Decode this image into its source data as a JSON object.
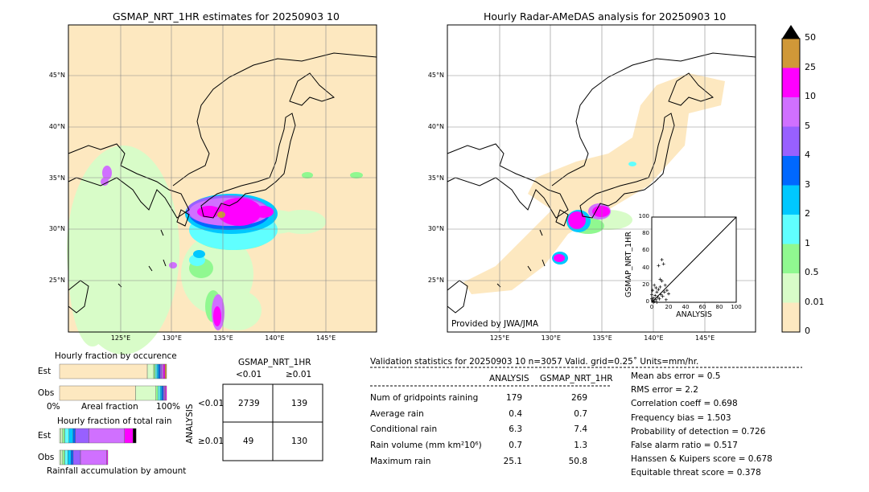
{
  "left_map": {
    "title": "GSMAP_NRT_1HR estimates for 20250903 10"
  },
  "right_map": {
    "title": "Hourly Radar-AMeDAS analysis for 20250903 10",
    "credit": "Provided by JWA/JMA"
  },
  "lat_labels": [
    "45°N",
    "40°N",
    "35°N",
    "30°N",
    "25°N"
  ],
  "lon_labels": [
    "125°E",
    "130°E",
    "135°E",
    "140°E",
    "145°E"
  ],
  "colorbar": {
    "levels": [
      "0",
      "0.01",
      "0.5",
      "1",
      "2",
      "3",
      "4",
      "5",
      "10",
      "25",
      "50"
    ],
    "colors": [
      "#fde8c0",
      "#d8fcc8",
      "#90f890",
      "#60ffff",
      "#00c8ff",
      "#0068ff",
      "#9860ff",
      "#d070ff",
      "#ff00ff",
      "#d09838"
    ],
    "extend_color": "#000000"
  },
  "chart_data": [
    {
      "type": "scatter",
      "xlabel": "ANALYSIS",
      "ylabel": "GSMAP_NRT_1HR",
      "xlim": [
        0,
        100
      ],
      "ylim": [
        0,
        100
      ],
      "ticks": [
        "0",
        "20",
        "40",
        "60",
        "80",
        "100"
      ],
      "points": [
        [
          1,
          2
        ],
        [
          2,
          5
        ],
        [
          3,
          1
        ],
        [
          4,
          8
        ],
        [
          5,
          3
        ],
        [
          6,
          12
        ],
        [
          7,
          6
        ],
        [
          8,
          15
        ],
        [
          9,
          4
        ],
        [
          10,
          18
        ],
        [
          11,
          9
        ],
        [
          12,
          25
        ],
        [
          13,
          7
        ],
        [
          15,
          12
        ],
        [
          17,
          3
        ],
        [
          18,
          14
        ],
        [
          20,
          10
        ],
        [
          3,
          20
        ],
        [
          5,
          17
        ],
        [
          8,
          43
        ],
        [
          12,
          50
        ],
        [
          14,
          45
        ],
        [
          10,
          27
        ],
        [
          2,
          0
        ],
        [
          6,
          0
        ],
        [
          0,
          4
        ],
        [
          0,
          9
        ],
        [
          1,
          14
        ],
        [
          16,
          20
        ]
      ]
    },
    {
      "type": "bar",
      "title": "Hourly fraction by occurence",
      "xlabel": "Areal fraction",
      "x_ticks": [
        "0%",
        "100%"
      ],
      "categories": [
        "Est",
        "Obs"
      ],
      "series_values": {
        "Est": [
          82,
          6,
          1.5,
          1.5,
          1.5,
          1.5,
          1.5,
          1.5,
          1.5,
          1.5
        ],
        "Obs": [
          71,
          19,
          2,
          2,
          1.5,
          1.5,
          1,
          1,
          1,
          0
        ]
      }
    },
    {
      "type": "bar",
      "title": "Hourly fraction of total rain",
      "xlabel": "Rainfall accumulation by amount",
      "categories": [
        "Est",
        "Obs"
      ],
      "series_values": {
        "Est": [
          1,
          2,
          2,
          4,
          4,
          2,
          13,
          34,
          8,
          3
        ],
        "Obs": [
          1,
          2,
          2,
          3,
          3,
          2,
          7,
          25,
          1,
          0
        ]
      }
    }
  ],
  "contingency": {
    "title": "GSMAP_NRT_1HR",
    "col_labels": [
      "<0.01",
      "≥0.01"
    ],
    "row_title": "ANALYSIS",
    "row_labels": [
      "<0.01",
      "≥0.01"
    ],
    "cells": [
      [
        "2739",
        "139"
      ],
      [
        "49",
        "130"
      ]
    ]
  },
  "stats": {
    "header": "Validation statistics for 20250903 10  n=3057 Valid. grid=0.25˚ Units=mm/hr.",
    "col_headers": [
      "ANALYSIS",
      "GSMAP_NRT_1HR"
    ],
    "rows": [
      {
        "label": "Num of gridpoints raining",
        "a": "179",
        "b": "269"
      },
      {
        "label": "Average rain",
        "a": "0.4",
        "b": "0.7"
      },
      {
        "label": "Conditional rain",
        "a": "6.3",
        "b": "7.4"
      },
      {
        "label": "Rain volume (mm km²10⁶)",
        "a": "0.7",
        "b": "1.3"
      },
      {
        "label": "Maximum rain",
        "a": "25.1",
        "b": "50.8"
      }
    ],
    "scores": [
      "Mean abs error =    0.5",
      "RMS error =    2.2",
      "Correlation coeff =  0.698",
      "Frequency bias =  1.503",
      "Probability of detection =  0.726",
      "False alarm ratio =  0.517",
      "Hanssen & Kuipers score =  0.678",
      "Equitable threat score =  0.378"
    ]
  }
}
